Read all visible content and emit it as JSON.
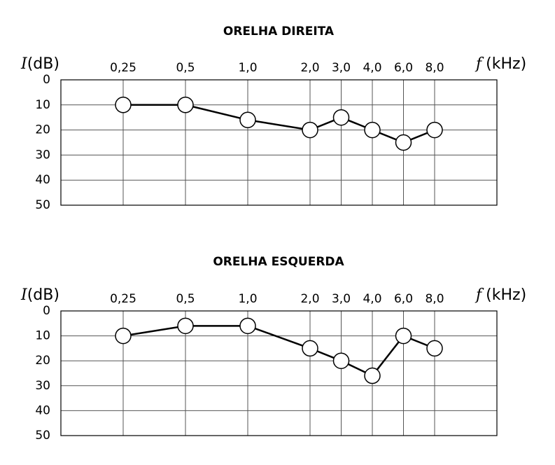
{
  "chart_data": [
    {
      "type": "line",
      "title": "ORELHA DIREITA",
      "y_label": {
        "symbol": "I",
        "unit": "(dB)"
      },
      "x_label": {
        "symbol": "f",
        "unit": "(kHz)"
      },
      "categories": [
        "0,25",
        "0,5",
        "1,0",
        "2,0",
        "3,0",
        "4,0",
        "6,0",
        "8,0"
      ],
      "values": [
        10,
        10,
        16,
        20,
        15,
        20,
        25,
        20
      ],
      "ylim": [
        0,
        50
      ],
      "yticks": [
        0,
        10,
        20,
        30,
        40,
        50
      ],
      "y_inverted": true,
      "grid": true,
      "color": "#000000"
    },
    {
      "type": "line",
      "title": "ORELHA ESQUERDA",
      "y_label": {
        "symbol": "I",
        "unit": "(dB)"
      },
      "x_label": {
        "symbol": "f",
        "unit": "(kHz)"
      },
      "categories": [
        "0,25",
        "0,5",
        "1,0",
        "2,0",
        "3,0",
        "4,0",
        "6,0",
        "8,0"
      ],
      "values": [
        10,
        6,
        6,
        15,
        20,
        26,
        10,
        15
      ],
      "ylim": [
        0,
        50
      ],
      "yticks": [
        0,
        10,
        20,
        30,
        40,
        50
      ],
      "y_inverted": true,
      "grid": true,
      "color": "#000000"
    }
  ]
}
